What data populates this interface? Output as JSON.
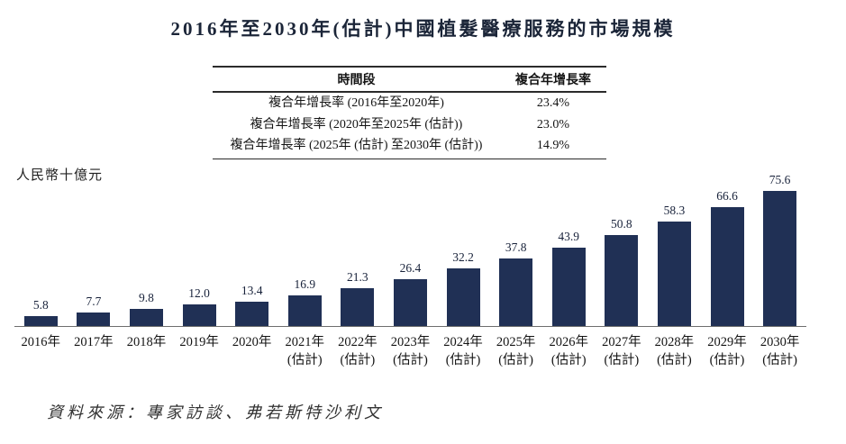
{
  "title": "2016年至2030年(估計)中國植髮醫療服務的市場規模",
  "table": {
    "headers": [
      "時間段",
      "複合年增長率"
    ],
    "rows": [
      [
        "複合年增長率 (2016年至2020年)",
        "23.4%"
      ],
      [
        "複合年增長率 (2020年至2025年 (估計))",
        "23.0%"
      ],
      [
        "複合年增長率 (2025年 (估計) 至2030年 (估計))",
        "14.9%"
      ]
    ]
  },
  "unit_label": "人民幣十億元",
  "chart_data": {
    "type": "bar",
    "title": "2016年至2030年(估計)中國植髮醫療服務的市場規模",
    "ylabel": "人民幣十億元",
    "xlabel": "",
    "categories": [
      "2016年",
      "2017年",
      "2018年",
      "2019年",
      "2020年",
      "2021年",
      "2022年",
      "2023年",
      "2024年",
      "2025年",
      "2026年",
      "2027年",
      "2028年",
      "2029年",
      "2030年"
    ],
    "estimate_suffix": "(估計)",
    "estimated_from_index": 5,
    "values": [
      5.8,
      7.7,
      9.8,
      12.0,
      13.4,
      16.9,
      21.3,
      26.4,
      32.2,
      37.8,
      43.9,
      50.8,
      58.3,
      66.6,
      75.6
    ],
    "value_labels": [
      "5.8",
      "7.7",
      "9.8",
      "12.0",
      "13.4",
      "16.9",
      "21.3",
      "26.4",
      "32.2",
      "37.8",
      "43.9",
      "50.8",
      "58.3",
      "66.6",
      "75.6"
    ],
    "bar_color": "#203055",
    "ylim": [
      0,
      80
    ],
    "grid": false,
    "legend": "none"
  },
  "footer": "資料來源：專家訪談、弗若斯特沙利文"
}
